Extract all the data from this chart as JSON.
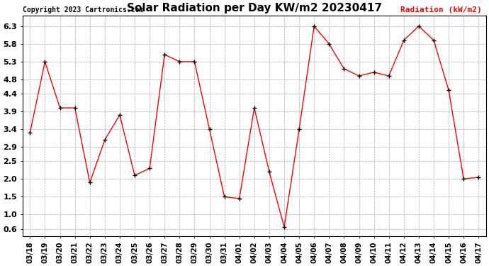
{
  "title": "Solar Radiation per Day KW/m2 20230417",
  "copyright": "Copyright 2023 Cartronics.com",
  "legend_label": "Radiation (kW/m2)",
  "dates": [
    "03/18",
    "03/19",
    "03/20",
    "03/21",
    "03/22",
    "03/23",
    "03/24",
    "03/25",
    "03/26",
    "03/27",
    "03/28",
    "03/29",
    "03/30",
    "03/31",
    "04/01",
    "04/02",
    "04/03",
    "04/04",
    "04/05",
    "04/06",
    "04/07",
    "04/08",
    "04/09",
    "04/10",
    "04/11",
    "04/12",
    "04/13",
    "04/14",
    "04/15",
    "04/16",
    "04/17"
  ],
  "values": [
    3.3,
    5.3,
    4.0,
    4.0,
    1.9,
    3.1,
    3.8,
    2.1,
    2.3,
    5.5,
    5.3,
    5.3,
    3.4,
    1.5,
    1.45,
    4.0,
    2.2,
    0.65,
    3.4,
    6.3,
    5.8,
    5.1,
    4.9,
    5.0,
    4.9,
    5.9,
    6.3,
    5.9,
    4.5,
    2.0,
    2.05
  ],
  "line_color": "red",
  "marker_color": "black",
  "marker_size": 5,
  "ylim": [
    0.4,
    6.6
  ],
  "yticks": [
    0.6,
    1.0,
    1.5,
    2.0,
    2.5,
    2.9,
    3.4,
    3.9,
    4.4,
    4.8,
    5.3,
    5.8,
    6.3
  ],
  "background_color": "white",
  "grid_color": "#aaaaaa",
  "title_fontsize": 11,
  "copyright_fontsize": 7,
  "legend_fontsize": 8,
  "tick_fontsize": 7,
  "ytick_fontsize": 8
}
